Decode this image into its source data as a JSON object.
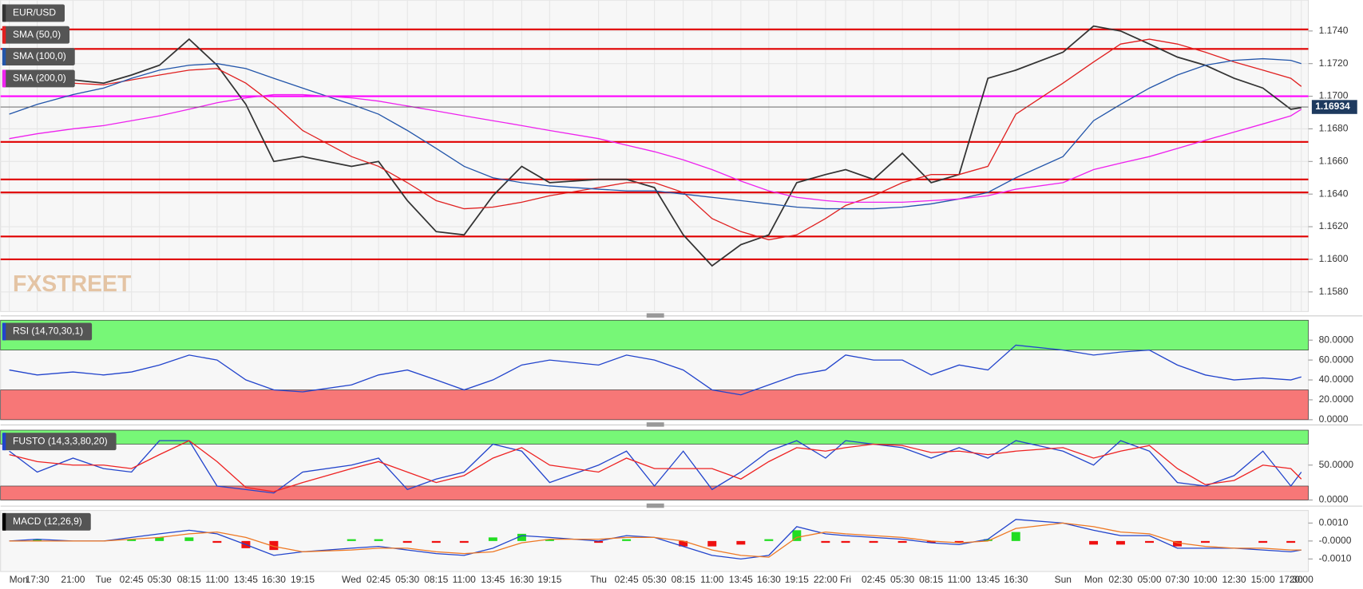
{
  "chart_data": [
    {
      "type": "line",
      "watermark": "FXSTREET",
      "categories": [
        "Mon",
        "17:30",
        "21:00",
        "Tue",
        "02:45",
        "05:30",
        "08:15",
        "11:00",
        "13:45",
        "16:30",
        "19:15",
        "Wed",
        "02:45",
        "05:30",
        "08:15",
        "11:00",
        "13:45",
        "16:30",
        "19:15",
        "Thu",
        "02:45",
        "05:30",
        "08:15",
        "11:00",
        "13:45",
        "16:30",
        "19:15",
        "22:00",
        "Fri",
        "02:45",
        "05:30",
        "08:15",
        "11:00",
        "13:45",
        "16:30",
        "Sun",
        "Mon",
        "02:30",
        "05:00",
        "07:30",
        "10:00",
        "12:30",
        "15:00",
        "17:30",
        "20:00"
      ],
      "series": [
        {
          "name": "EUR/USD",
          "color": "#333333",
          "values": [
            1.1708,
            1.1711,
            1.171,
            1.1708,
            1.1713,
            1.1719,
            1.1735,
            1.1719,
            1.1695,
            1.166,
            1.1663,
            1.1657,
            1.166,
            1.1636,
            1.1617,
            1.1615,
            1.1639,
            1.1657,
            1.1647,
            1.1649,
            1.1649,
            1.1644,
            1.1615,
            1.1596,
            1.1609,
            1.1615,
            1.1647,
            1.1652,
            1.1655,
            1.1649,
            1.1665,
            1.1647,
            1.1652,
            1.1711,
            1.1716,
            1.1727,
            1.1743,
            1.174,
            1.1732,
            1.1724,
            1.1719,
            1.1711,
            1.1705,
            1.1692,
            1.1693
          ]
        },
        {
          "name": "SMA (50,0)",
          "color": "#e02020",
          "values": [
            1.1708,
            1.171,
            1.1708,
            1.1707,
            1.171,
            1.1713,
            1.1716,
            1.1717,
            1.1708,
            1.1695,
            1.1679,
            1.1663,
            1.1657,
            1.1647,
            1.1636,
            1.1631,
            1.1632,
            1.1635,
            1.1639,
            1.1644,
            1.1647,
            1.1647,
            1.1641,
            1.1625,
            1.1617,
            1.1612,
            1.1615,
            1.1625,
            1.1633,
            1.1639,
            1.1647,
            1.1652,
            1.1652,
            1.1657,
            1.1689,
            1.1708,
            1.1721,
            1.1732,
            1.1735,
            1.1732,
            1.1727,
            1.1721,
            1.1716,
            1.1711,
            1.1706
          ]
        },
        {
          "name": "SMA (100,0)",
          "color": "#2255aa",
          "values": [
            1.1689,
            1.1695,
            1.1701,
            1.1705,
            1.1711,
            1.1716,
            1.1719,
            1.172,
            1.1717,
            1.1711,
            1.1705,
            1.1695,
            1.1689,
            1.1679,
            1.1668,
            1.1657,
            1.165,
            1.1647,
            1.1645,
            1.1643,
            1.1642,
            1.1642,
            1.164,
            1.1638,
            1.1636,
            1.1634,
            1.1632,
            1.1631,
            1.1631,
            1.1631,
            1.1632,
            1.1634,
            1.1637,
            1.1641,
            1.165,
            1.1663,
            1.1685,
            1.1695,
            1.1705,
            1.1713,
            1.1719,
            1.1722,
            1.1723,
            1.1722,
            1.172
          ]
        },
        {
          "name": "SMA (200,0)",
          "color": "#ee22ee",
          "values": [
            1.1674,
            1.1677,
            1.168,
            1.1682,
            1.1685,
            1.1688,
            1.1692,
            1.1696,
            1.1699,
            1.1701,
            1.1701,
            1.1699,
            1.1697,
            1.1694,
            1.1691,
            1.1688,
            1.1685,
            1.1682,
            1.1679,
            1.1674,
            1.167,
            1.1666,
            1.1661,
            1.1655,
            1.1648,
            1.1642,
            1.1638,
            1.1636,
            1.1635,
            1.1635,
            1.1635,
            1.1636,
            1.1637,
            1.1639,
            1.1643,
            1.1647,
            1.1655,
            1.1659,
            1.1663,
            1.1668,
            1.1673,
            1.1678,
            1.1683,
            1.1688,
            1.1692
          ]
        }
      ],
      "levels": [
        {
          "value": 1.1741,
          "color": "#e00000"
        },
        {
          "value": 1.1729,
          "color": "#e00000"
        },
        {
          "value": 1.17,
          "color": "#ff00ff"
        },
        {
          "value": 1.1672,
          "color": "#e00000"
        },
        {
          "value": 1.1649,
          "color": "#e00000"
        },
        {
          "value": 1.1641,
          "color": "#e00000"
        },
        {
          "value": 1.1614,
          "color": "#e00000"
        },
        {
          "value": 1.16,
          "color": "#e00000"
        }
      ],
      "last_price": 1.16934,
      "ylim": [
        1.1568,
        1.1759
      ],
      "yticks": [
        {
          "value": 1.158,
          "label": "1.1580"
        },
        {
          "value": 1.16,
          "label": "1.1600"
        },
        {
          "value": 1.162,
          "label": "1.1620"
        },
        {
          "value": 1.164,
          "label": "1.1640"
        },
        {
          "value": 1.166,
          "label": "1.1660"
        },
        {
          "value": 1.168,
          "label": "1.1680"
        },
        {
          "value": 1.17,
          "label": "1.1700"
        },
        {
          "value": 1.172,
          "label": "1.1720"
        },
        {
          "value": 1.174,
          "label": "1.1740"
        }
      ],
      "grid": true
    },
    {
      "type": "line",
      "title": "RSI (14,70,30,1)",
      "series": [
        {
          "color": "#2244cc",
          "values": [
            50,
            45,
            48,
            45,
            48,
            55,
            65,
            60,
            40,
            30,
            28,
            35,
            45,
            50,
            40,
            30,
            40,
            55,
            60,
            55,
            65,
            60,
            50,
            30,
            25,
            35,
            45,
            50,
            65,
            60,
            60,
            45,
            55,
            50,
            75,
            70,
            65,
            68,
            70,
            55,
            45,
            40,
            42,
            40,
            43
          ]
        }
      ],
      "bands": [
        {
          "from": 70,
          "to": 100,
          "color": "#77f777"
        },
        {
          "from": 0,
          "to": 30,
          "color": "#f77777"
        }
      ],
      "ylim": [
        0,
        100
      ],
      "yticks": [
        {
          "value": 0,
          "label": "0.0000"
        },
        {
          "value": 20,
          "label": "20.0000"
        },
        {
          "value": 40,
          "label": "40.0000"
        },
        {
          "value": 60,
          "label": "60.0000"
        },
        {
          "value": 80,
          "label": "80.0000"
        }
      ]
    },
    {
      "type": "line",
      "title": "FUSTO (14,3,3,80,20)",
      "series": [
        {
          "color": "#2244cc",
          "values": [
            70,
            40,
            60,
            45,
            40,
            85,
            85,
            20,
            15,
            10,
            40,
            50,
            60,
            15,
            30,
            40,
            80,
            70,
            25,
            50,
            70,
            20,
            70,
            15,
            40,
            70,
            85,
            60,
            85,
            80,
            75,
            60,
            75,
            60,
            85,
            70,
            50,
            85,
            70,
            25,
            20,
            35,
            70,
            20,
            40
          ]
        },
        {
          "color": "#ee2222",
          "values": [
            65,
            55,
            50,
            50,
            45,
            65,
            85,
            55,
            18,
            12,
            25,
            45,
            55,
            40,
            25,
            35,
            60,
            75,
            50,
            40,
            60,
            45,
            45,
            45,
            30,
            55,
            75,
            70,
            75,
            80,
            78,
            68,
            70,
            65,
            70,
            75,
            60,
            70,
            78,
            45,
            22,
            28,
            50,
            45,
            30
          ]
        }
      ],
      "bands": [
        {
          "from": 80,
          "to": 100,
          "color": "#77f777"
        },
        {
          "from": 0,
          "to": 20,
          "color": "#f77777"
        }
      ],
      "ylim": [
        0,
        100
      ],
      "yticks": [
        {
          "value": 0,
          "label": "0.0000"
        },
        {
          "value": 50,
          "label": "50.0000"
        }
      ]
    },
    {
      "type": "line",
      "title": "MACD (12,26,9)",
      "series": [
        {
          "type": "bar",
          "color_up": "#22dd22",
          "color_down": "#ee1111",
          "values": [
            0,
            0.0001,
            0,
            0,
            0.0001,
            0.0002,
            0.0002,
            -0.0001,
            -0.0004,
            -0.0005,
            0,
            0.0001,
            0.0001,
            -0.0001,
            -0.0001,
            -0.0001,
            0.0002,
            0.0004,
            0.0001,
            -0.0001,
            0.0001,
            0,
            -0.0003,
            -0.0003,
            -0.0002,
            0.0001,
            0.0006,
            -0.0001,
            -0.0001,
            -0.0001,
            -0.0001,
            -0.0001,
            -0.0001,
            0.0001,
            0.0005,
            0,
            -0.0002,
            -0.0002,
            -0.0001,
            -0.0003,
            -0.0001,
            0,
            -0.0001,
            -0.0001,
            0
          ]
        },
        {
          "color": "#2244cc",
          "values": [
            0,
            0.0001,
            0,
            0,
            0.0002,
            0.0004,
            0.0006,
            0.0004,
            -0.0002,
            -0.0008,
            -0.0006,
            -0.0004,
            -0.0003,
            -0.0005,
            -0.0007,
            -0.0008,
            -0.0004,
            0.0003,
            0.0002,
            0,
            0.0003,
            0.0002,
            -0.0003,
            -0.0008,
            -0.001,
            -0.0008,
            0.0008,
            0.0004,
            0.0003,
            0.0002,
            0.0001,
            -0.0001,
            -0.0002,
            0.0001,
            0.0012,
            0.001,
            0.0006,
            0.0003,
            0.0003,
            -0.0004,
            -0.0004,
            -0.0004,
            -0.0005,
            -0.0006,
            -0.0005
          ]
        },
        {
          "color": "#ee7722",
          "values": [
            0,
            0,
            0,
            0,
            0.0001,
            0.0002,
            0.0004,
            0.0005,
            0.0002,
            -0.0003,
            -0.0006,
            -0.0005,
            -0.0004,
            -0.0004,
            -0.0006,
            -0.0007,
            -0.0006,
            -0.0001,
            0.0001,
            0.0001,
            0.0002,
            0.0002,
            0,
            -0.0005,
            -0.0008,
            -0.0009,
            0.0002,
            0.0005,
            0.0004,
            0.0003,
            0.0002,
            0,
            -0.0001,
            0,
            0.0007,
            0.001,
            0.0008,
            0.0005,
            0.0004,
            -0.0001,
            -0.0003,
            -0.0004,
            -0.0004,
            -0.0005,
            -0.0005
          ]
        }
      ],
      "ylim": [
        -0.0017,
        0.0017
      ],
      "yticks": [
        {
          "value": -0.001,
          "label": "-0.0010"
        },
        {
          "value": 0,
          "label": "-0.0000"
        },
        {
          "value": 0.001,
          "label": "0.0010"
        }
      ]
    }
  ]
}
